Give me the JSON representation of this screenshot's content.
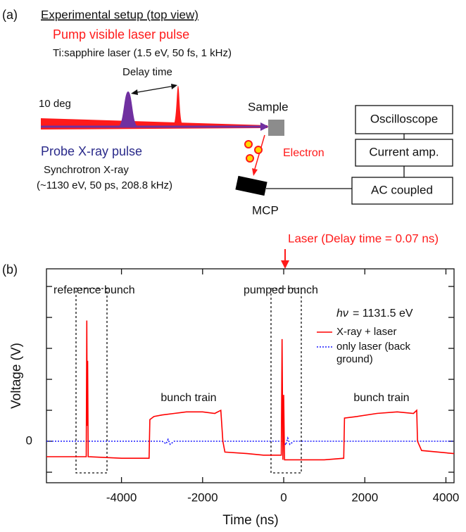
{
  "panel_a": {
    "label": "(a)",
    "title": "Experimental setup (top view)",
    "pump_title": "Pump visible laser pulse",
    "pump_detail": "Ti:sapphire laser (1.5 eV, 50 fs, 1 kHz)",
    "delay": "Delay time",
    "angle": "10 deg",
    "sample": "Sample",
    "probe_title": "Probe X-ray pulse",
    "probe_detail_1": "Synchrotron X-ray",
    "probe_detail_2": "(~1130 eV, 50 ps, 208.8 kHz)",
    "electron": "Electron",
    "mcp": "MCP",
    "boxes": [
      "Oscilloscope",
      "Current amp.",
      "AC coupled"
    ]
  },
  "chart_data": {
    "type": "line",
    "panel_label": "(b)",
    "xlabel": "Time (ns)",
    "ylabel": "Voltage (V)",
    "annotation_laser": "Laser (Delay time = 0.07 ns)",
    "annotation_reference": "reference bunch",
    "annotation_pumped": "pumped bunch",
    "annotation_train": [
      "bunch train",
      "bunch train"
    ],
    "hv_symbol": "hν",
    "hv_text": "= 1131.5 eV",
    "xlim": [
      -5850,
      4200
    ],
    "xticks": [
      -4000,
      -2000,
      0,
      2000,
      4000
    ],
    "ylim": [
      -1.34,
      5.57
    ],
    "yticks": [
      0
    ],
    "yticks_minor": [
      -1,
      1,
      2,
      3,
      4,
      5
    ],
    "series": [
      {
        "name": "X-ray + laser",
        "color": "#ff0000",
        "style": "solid",
        "x": [
          -5850,
          -5000,
          -4870,
          -4855,
          -4845,
          -4835,
          -4820,
          -4000,
          -3320,
          -3300,
          -3200,
          -3000,
          -2700,
          -2400,
          -2000,
          -1700,
          -1550,
          -1500,
          -1450,
          -900,
          -500,
          -60,
          -40,
          -20,
          0,
          20,
          300,
          1000,
          1480,
          1500,
          1800,
          2300,
          2800,
          3200,
          3280,
          3300,
          3400,
          4200
        ],
        "values": [
          -0.5,
          -0.5,
          -0.5,
          3.9,
          0.5,
          2.6,
          -0.5,
          -0.55,
          -0.55,
          0.7,
          0.8,
          0.85,
          0.9,
          0.95,
          0.95,
          0.9,
          1.0,
          0.0,
          -0.35,
          -0.4,
          -0.45,
          -0.45,
          3.3,
          -0.6,
          1.5,
          -0.6,
          -0.6,
          -0.6,
          -0.55,
          0.75,
          0.8,
          0.9,
          0.95,
          0.9,
          1.0,
          0.0,
          -0.3,
          -0.4
        ]
      },
      {
        "name": "only laser (back ground)",
        "color": "#1a1aff",
        "style": "dotted",
        "x": [
          -5850,
          -3000,
          -2900,
          -2850,
          -2800,
          -2700,
          0,
          50,
          100,
          150,
          250,
          4200
        ],
        "values": [
          0,
          0,
          -0.08,
          0.06,
          -0.1,
          0,
          0,
          -0.12,
          0.1,
          -0.1,
          0,
          0
        ]
      }
    ]
  }
}
